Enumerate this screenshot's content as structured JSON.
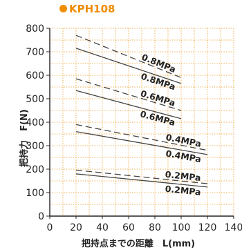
{
  "chart_data": {
    "type": "line",
    "title": "KPH108",
    "xlabel": "把持点までの距離　L(mm)",
    "ylabel": "把持力　F(N)",
    "xlim": [
      0,
      140
    ],
    "ylim": [
      0,
      800
    ],
    "xticks": [
      0,
      20,
      40,
      60,
      80,
      100,
      120,
      140
    ],
    "yticks": [
      0,
      100,
      200,
      300,
      400,
      500,
      600,
      700,
      800
    ],
    "grid": true,
    "series": [
      {
        "name": "0.8MPa",
        "style": "dashed",
        "x": [
          20,
          100
        ],
        "y": [
          770,
          590
        ]
      },
      {
        "name": "0.8MPa",
        "style": "solid",
        "x": [
          20,
          100
        ],
        "y": [
          715,
          565
        ]
      },
      {
        "name": "0.6MPa",
        "style": "dashed",
        "x": [
          20,
          100
        ],
        "y": [
          585,
          450
        ]
      },
      {
        "name": "0.6MPa",
        "style": "solid",
        "x": [
          20,
          100
        ],
        "y": [
          535,
          415
        ]
      },
      {
        "name": "0.4MPa",
        "style": "dashed",
        "x": [
          20,
          120
        ],
        "y": [
          390,
          280
        ]
      },
      {
        "name": "0.4MPa",
        "style": "solid",
        "x": [
          20,
          120
        ],
        "y": [
          360,
          262
        ]
      },
      {
        "name": "0.2MPa",
        "style": "dashed",
        "x": [
          20,
          120
        ],
        "y": [
          196,
          138
        ]
      },
      {
        "name": "0.2MPa",
        "style": "solid",
        "x": [
          20,
          120
        ],
        "y": [
          180,
          124
        ]
      }
    ]
  },
  "colors": {
    "title": "#f08c00",
    "grid": "#f0a030",
    "line": "#444444",
    "axis": "#222222"
  }
}
